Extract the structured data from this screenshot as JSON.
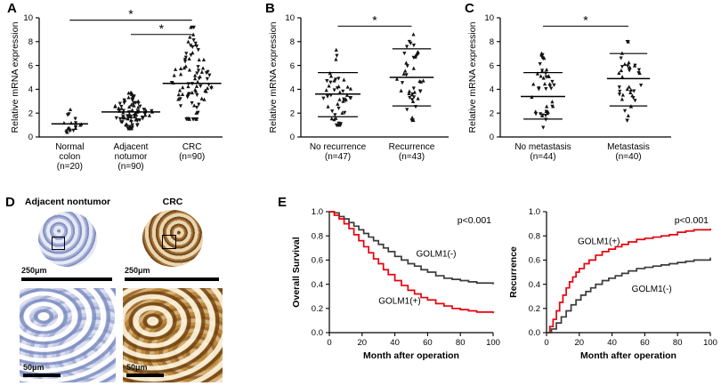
{
  "panel_labels": {
    "A": "A",
    "B": "B",
    "C": "C",
    "D": "D",
    "E": "E"
  },
  "chart_data": [
    {
      "id": "A",
      "type": "scatter",
      "ylabel": "Relative mRNA expression",
      "ylim": [
        0,
        10
      ],
      "yticks": [
        0,
        2,
        4,
        6,
        8,
        10
      ],
      "groups": [
        {
          "label_lines": [
            "Normal",
            "colon",
            "(n=20)"
          ],
          "n": 20,
          "mean": 1.1,
          "min": 0.4,
          "max": 2.3
        },
        {
          "label_lines": [
            "Adjacent",
            "notumor",
            "(n=90)"
          ],
          "n": 90,
          "mean": 2.1,
          "min": 0.7,
          "max": 3.7
        },
        {
          "label_lines": [
            "CRC",
            "(n=90)"
          ],
          "n": 90,
          "mean": 4.5,
          "min": 1.5,
          "max": 9.2
        }
      ],
      "sig": [
        {
          "from": 0,
          "to": 2,
          "y": 9.8,
          "label": "*"
        },
        {
          "from": 1,
          "to": 2,
          "y": 8.6,
          "label": "*"
        }
      ]
    },
    {
      "id": "B",
      "type": "scatter",
      "ylabel": "Relative mRNA expression",
      "ylim": [
        0,
        10
      ],
      "yticks": [
        0,
        2,
        4,
        6,
        8,
        10
      ],
      "groups": [
        {
          "label_lines": [
            "No recurrence",
            "(n=47)"
          ],
          "n": 47,
          "mean": 3.6,
          "min": 1.0,
          "max": 7.3,
          "err_low": 1.7,
          "err_high": 5.4
        },
        {
          "label_lines": [
            "Recurrence",
            "(n=43)"
          ],
          "n": 43,
          "mean": 5.0,
          "min": 1.4,
          "max": 8.6,
          "err_low": 2.6,
          "err_high": 7.4
        }
      ],
      "sig": [
        {
          "from": 0,
          "to": 1,
          "y": 9.3,
          "label": "*"
        }
      ]
    },
    {
      "id": "C",
      "type": "scatter",
      "ylabel": "Relative mRNA expression",
      "ylim": [
        0,
        10
      ],
      "yticks": [
        0,
        2,
        4,
        6,
        8,
        10
      ],
      "groups": [
        {
          "label_lines": [
            "No metastasis",
            "(n=44)"
          ],
          "n": 44,
          "mean": 3.4,
          "min": 0.8,
          "max": 7.0,
          "err_low": 1.5,
          "err_high": 5.4
        },
        {
          "label_lines": [
            "Metastasis",
            "(n=40)"
          ],
          "n": 40,
          "mean": 4.9,
          "min": 1.4,
          "max": 8.0,
          "err_low": 2.6,
          "err_high": 7.0
        }
      ],
      "sig": [
        {
          "from": 0,
          "to": 1,
          "y": 9.3,
          "label": "*"
        }
      ]
    },
    {
      "id": "E1",
      "type": "km",
      "ylabel": "Overall Survival",
      "xlabel": "Month after operation",
      "xlim": [
        0,
        100
      ],
      "ylim": [
        0,
        1
      ],
      "yticks": [
        0,
        0.2,
        0.4,
        0.6,
        0.8,
        1.0
      ],
      "xticks": [
        0,
        20,
        40,
        60,
        80,
        100
      ],
      "p_label": "p<0.001",
      "series": [
        {
          "name": "GOLM1(-)",
          "color": "#3b3b3d",
          "label_pos": {
            "x": 53,
            "y": 0.63
          },
          "points": [
            [
              0,
              1
            ],
            [
              3,
              0.99
            ],
            [
              6,
              0.96
            ],
            [
              9,
              0.94
            ],
            [
              12,
              0.91
            ],
            [
              15,
              0.88
            ],
            [
              18,
              0.85
            ],
            [
              21,
              0.82
            ],
            [
              24,
              0.79
            ],
            [
              27,
              0.76
            ],
            [
              30,
              0.73
            ],
            [
              33,
              0.7
            ],
            [
              36,
              0.67
            ],
            [
              40,
              0.63
            ],
            [
              44,
              0.6
            ],
            [
              48,
              0.57
            ],
            [
              52,
              0.55
            ],
            [
              56,
              0.52
            ],
            [
              60,
              0.5
            ],
            [
              65,
              0.47
            ],
            [
              70,
              0.45
            ],
            [
              75,
              0.44
            ],
            [
              80,
              0.43
            ],
            [
              85,
              0.42
            ],
            [
              90,
              0.41
            ],
            [
              100,
              0.4
            ]
          ]
        },
        {
          "name": "GOLM1(+)",
          "color": "#e8000d",
          "label_pos": {
            "x": 30,
            "y": 0.24
          },
          "points": [
            [
              0,
              1
            ],
            [
              3,
              0.97
            ],
            [
              6,
              0.94
            ],
            [
              9,
              0.9
            ],
            [
              12,
              0.86
            ],
            [
              15,
              0.81
            ],
            [
              18,
              0.76
            ],
            [
              21,
              0.71
            ],
            [
              24,
              0.66
            ],
            [
              27,
              0.61
            ],
            [
              30,
              0.57
            ],
            [
              33,
              0.52
            ],
            [
              36,
              0.48
            ],
            [
              40,
              0.43
            ],
            [
              44,
              0.39
            ],
            [
              48,
              0.35
            ],
            [
              52,
              0.32
            ],
            [
              56,
              0.29
            ],
            [
              60,
              0.27
            ],
            [
              65,
              0.24
            ],
            [
              70,
              0.22
            ],
            [
              75,
              0.2
            ],
            [
              80,
              0.19
            ],
            [
              85,
              0.18
            ],
            [
              90,
              0.17
            ],
            [
              100,
              0.16
            ]
          ]
        }
      ]
    },
    {
      "id": "E2",
      "type": "km",
      "ylabel": "Recurrence",
      "xlabel": "Month after operation",
      "xlim": [
        0,
        100
      ],
      "ylim": [
        0,
        1
      ],
      "yticks": [
        0,
        0.2,
        0.4,
        0.6,
        0.8,
        1.0
      ],
      "xticks": [
        0,
        20,
        40,
        60,
        80,
        100
      ],
      "p_label": "p<0.001",
      "series": [
        {
          "name": "GOLM1(+)",
          "color": "#e8000d",
          "label_pos": {
            "x": 19,
            "y": 0.73
          },
          "points": [
            [
              0,
              0
            ],
            [
              2,
              0.05
            ],
            [
              4,
              0.11
            ],
            [
              6,
              0.18
            ],
            [
              8,
              0.25
            ],
            [
              10,
              0.31
            ],
            [
              12,
              0.37
            ],
            [
              14,
              0.42
            ],
            [
              16,
              0.46
            ],
            [
              18,
              0.5
            ],
            [
              20,
              0.53
            ],
            [
              23,
              0.57
            ],
            [
              26,
              0.6
            ],
            [
              30,
              0.64
            ],
            [
              34,
              0.67
            ],
            [
              38,
              0.69
            ],
            [
              42,
              0.71
            ],
            [
              46,
              0.73
            ],
            [
              50,
              0.75
            ],
            [
              55,
              0.77
            ],
            [
              60,
              0.78
            ],
            [
              65,
              0.79
            ],
            [
              70,
              0.8
            ],
            [
              75,
              0.81
            ],
            [
              80,
              0.83
            ],
            [
              85,
              0.84
            ],
            [
              90,
              0.85
            ],
            [
              100,
              0.86
            ]
          ]
        },
        {
          "name": "GOLM1(-)",
          "color": "#3b3b3d",
          "label_pos": {
            "x": 52,
            "y": 0.34
          },
          "points": [
            [
              0,
              0
            ],
            [
              3,
              0.03
            ],
            [
              6,
              0.08
            ],
            [
              9,
              0.13
            ],
            [
              12,
              0.18
            ],
            [
              15,
              0.23
            ],
            [
              18,
              0.27
            ],
            [
              21,
              0.31
            ],
            [
              24,
              0.34
            ],
            [
              27,
              0.37
            ],
            [
              30,
              0.4
            ],
            [
              34,
              0.43
            ],
            [
              38,
              0.45
            ],
            [
              42,
              0.47
            ],
            [
              46,
              0.49
            ],
            [
              50,
              0.51
            ],
            [
              55,
              0.53
            ],
            [
              60,
              0.54
            ],
            [
              65,
              0.55
            ],
            [
              70,
              0.56
            ],
            [
              75,
              0.57
            ],
            [
              80,
              0.58
            ],
            [
              85,
              0.59
            ],
            [
              90,
              0.6
            ],
            [
              100,
              0.62
            ]
          ]
        }
      ]
    }
  ],
  "panelD": {
    "columns": [
      {
        "title": "Adjacent nontumor",
        "scale_top": "250μm",
        "scale_bottom": "50μm"
      },
      {
        "title": "CRC",
        "scale_top": "250μm",
        "scale_bottom": "50μm"
      }
    ]
  }
}
